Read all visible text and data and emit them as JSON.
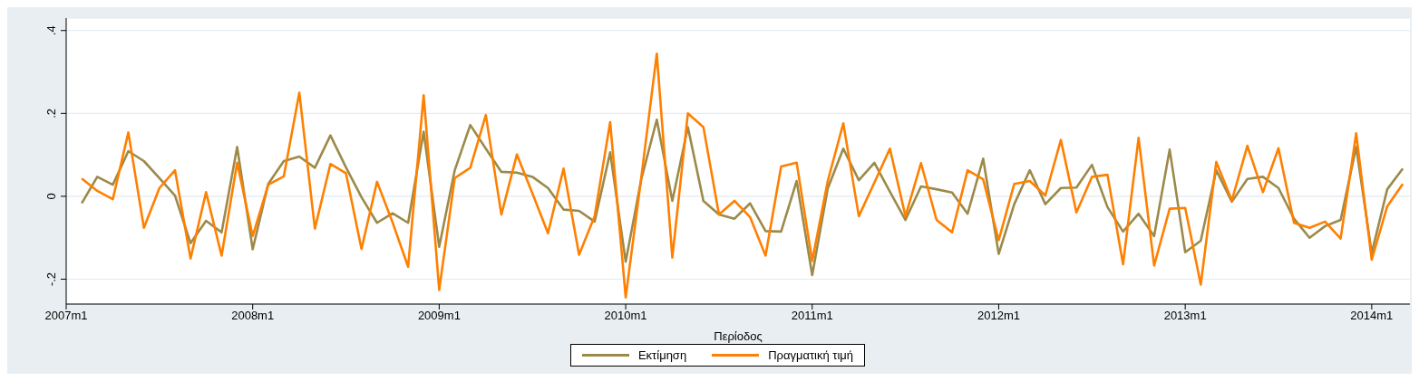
{
  "chart_data": {
    "type": "line",
    "xlabel": "Περίοδος",
    "x": [
      "2007-02",
      "2007-03",
      "2007-04",
      "2007-05",
      "2007-06",
      "2007-07",
      "2007-08",
      "2007-09",
      "2007-10",
      "2007-11",
      "2007-12",
      "2008-01",
      "2008-02",
      "2008-03",
      "2008-04",
      "2008-05",
      "2008-06",
      "2008-07",
      "2008-08",
      "2008-09",
      "2008-10",
      "2008-11",
      "2008-12",
      "2009-01",
      "2009-02",
      "2009-03",
      "2009-04",
      "2009-05",
      "2009-06",
      "2009-07",
      "2009-08",
      "2009-09",
      "2009-10",
      "2009-11",
      "2009-12",
      "2010-01",
      "2010-02",
      "2010-03",
      "2010-04",
      "2010-05",
      "2010-06",
      "2010-07",
      "2010-08",
      "2010-09",
      "2010-10",
      "2010-11",
      "2010-12",
      "2011-01",
      "2011-02",
      "2011-03",
      "2011-04",
      "2011-05",
      "2011-06",
      "2011-07",
      "2011-08",
      "2011-09",
      "2011-10",
      "2011-11",
      "2011-12",
      "2012-01",
      "2012-02",
      "2012-03",
      "2012-04",
      "2012-05",
      "2012-06",
      "2012-07",
      "2012-08",
      "2012-09",
      "2012-10",
      "2012-11",
      "2012-12",
      "2013-01",
      "2013-02",
      "2013-03",
      "2013-04",
      "2013-05",
      "2013-06",
      "2013-07",
      "2013-08",
      "2013-09",
      "2013-10",
      "2013-11",
      "2013-12",
      "2014-01",
      "2014-02",
      "2014-03"
    ],
    "series": [
      {
        "name": "Εκτίμηση",
        "color": "#9c8a4a",
        "values": [
          -0.017,
          0.047,
          0.028,
          0.109,
          0.085,
          0.044,
          0.002,
          -0.113,
          -0.059,
          -0.087,
          0.119,
          -0.128,
          0.03,
          0.085,
          0.096,
          0.069,
          0.147,
          0.07,
          -0.002,
          -0.064,
          -0.041,
          -0.064,
          0.156,
          -0.122,
          0.063,
          0.172,
          0.115,
          0.059,
          0.057,
          0.047,
          0.02,
          -0.032,
          -0.035,
          -0.061,
          0.106,
          -0.158,
          0.041,
          0.185,
          -0.011,
          0.167,
          -0.011,
          -0.044,
          -0.054,
          -0.017,
          -0.084,
          -0.085,
          0.037,
          -0.19,
          0.019,
          0.115,
          0.039,
          0.081,
          0.011,
          -0.057,
          0.024,
          0.017,
          0.009,
          -0.042,
          0.091,
          -0.139,
          -0.019,
          0.063,
          -0.019,
          0.02,
          0.021,
          0.076,
          -0.026,
          -0.085,
          -0.042,
          -0.096,
          0.113,
          -0.135,
          -0.107,
          0.063,
          -0.013,
          0.042,
          0.047,
          0.02,
          -0.054,
          -0.1,
          -0.072,
          -0.057,
          0.119,
          -0.137,
          0.017,
          0.067
        ]
      },
      {
        "name": "Πραγματική τιμή",
        "color": "#ff8000",
        "values": [
          0.043,
          0.013,
          -0.007,
          0.154,
          -0.076,
          0.02,
          0.063,
          -0.15,
          0.01,
          -0.143,
          0.081,
          -0.096,
          0.028,
          0.048,
          0.25,
          -0.078,
          0.078,
          0.056,
          -0.127,
          0.035,
          -0.063,
          -0.17,
          0.244,
          -0.226,
          0.044,
          0.069,
          0.196,
          -0.044,
          0.101,
          0.007,
          -0.089,
          0.067,
          -0.141,
          -0.048,
          0.179,
          -0.244,
          0.045,
          0.344,
          -0.148,
          0.2,
          0.167,
          -0.044,
          -0.011,
          -0.05,
          -0.143,
          0.072,
          0.081,
          -0.156,
          0.037,
          0.176,
          -0.048,
          0.033,
          0.115,
          -0.048,
          0.08,
          -0.057,
          -0.087,
          0.063,
          0.041,
          -0.106,
          0.03,
          0.037,
          0.002,
          0.136,
          -0.039,
          0.047,
          0.052,
          -0.164,
          0.141,
          -0.167,
          -0.03,
          -0.028,
          -0.213,
          0.083,
          -0.01,
          0.122,
          0.01,
          0.116,
          -0.064,
          -0.076,
          -0.061,
          -0.102,
          0.152,
          -0.153,
          -0.024,
          0.03
        ]
      }
    ],
    "xlim": [
      "2007-01",
      "2014-03-15"
    ],
    "xticks": [
      {
        "value": "2007-01",
        "label": "2007m1"
      },
      {
        "value": "2008-01",
        "label": "2008m1"
      },
      {
        "value": "2009-01",
        "label": "2009m1"
      },
      {
        "value": "2010-01",
        "label": "2010m1"
      },
      {
        "value": "2011-01",
        "label": "2011m1"
      },
      {
        "value": "2012-01",
        "label": "2012m1"
      },
      {
        "value": "2013-01",
        "label": "2013m1"
      },
      {
        "value": "2014-01",
        "label": "2014m1"
      }
    ],
    "ylim": [
      -0.26,
      0.43
    ],
    "yticks": [
      {
        "value": -0.2,
        "label": "-.2"
      },
      {
        "value": 0,
        "label": "0"
      },
      {
        "value": 0.2,
        "label": ".2"
      },
      {
        "value": 0.4,
        "label": ".4"
      }
    ],
    "grid": "y",
    "legend": "bottom"
  }
}
